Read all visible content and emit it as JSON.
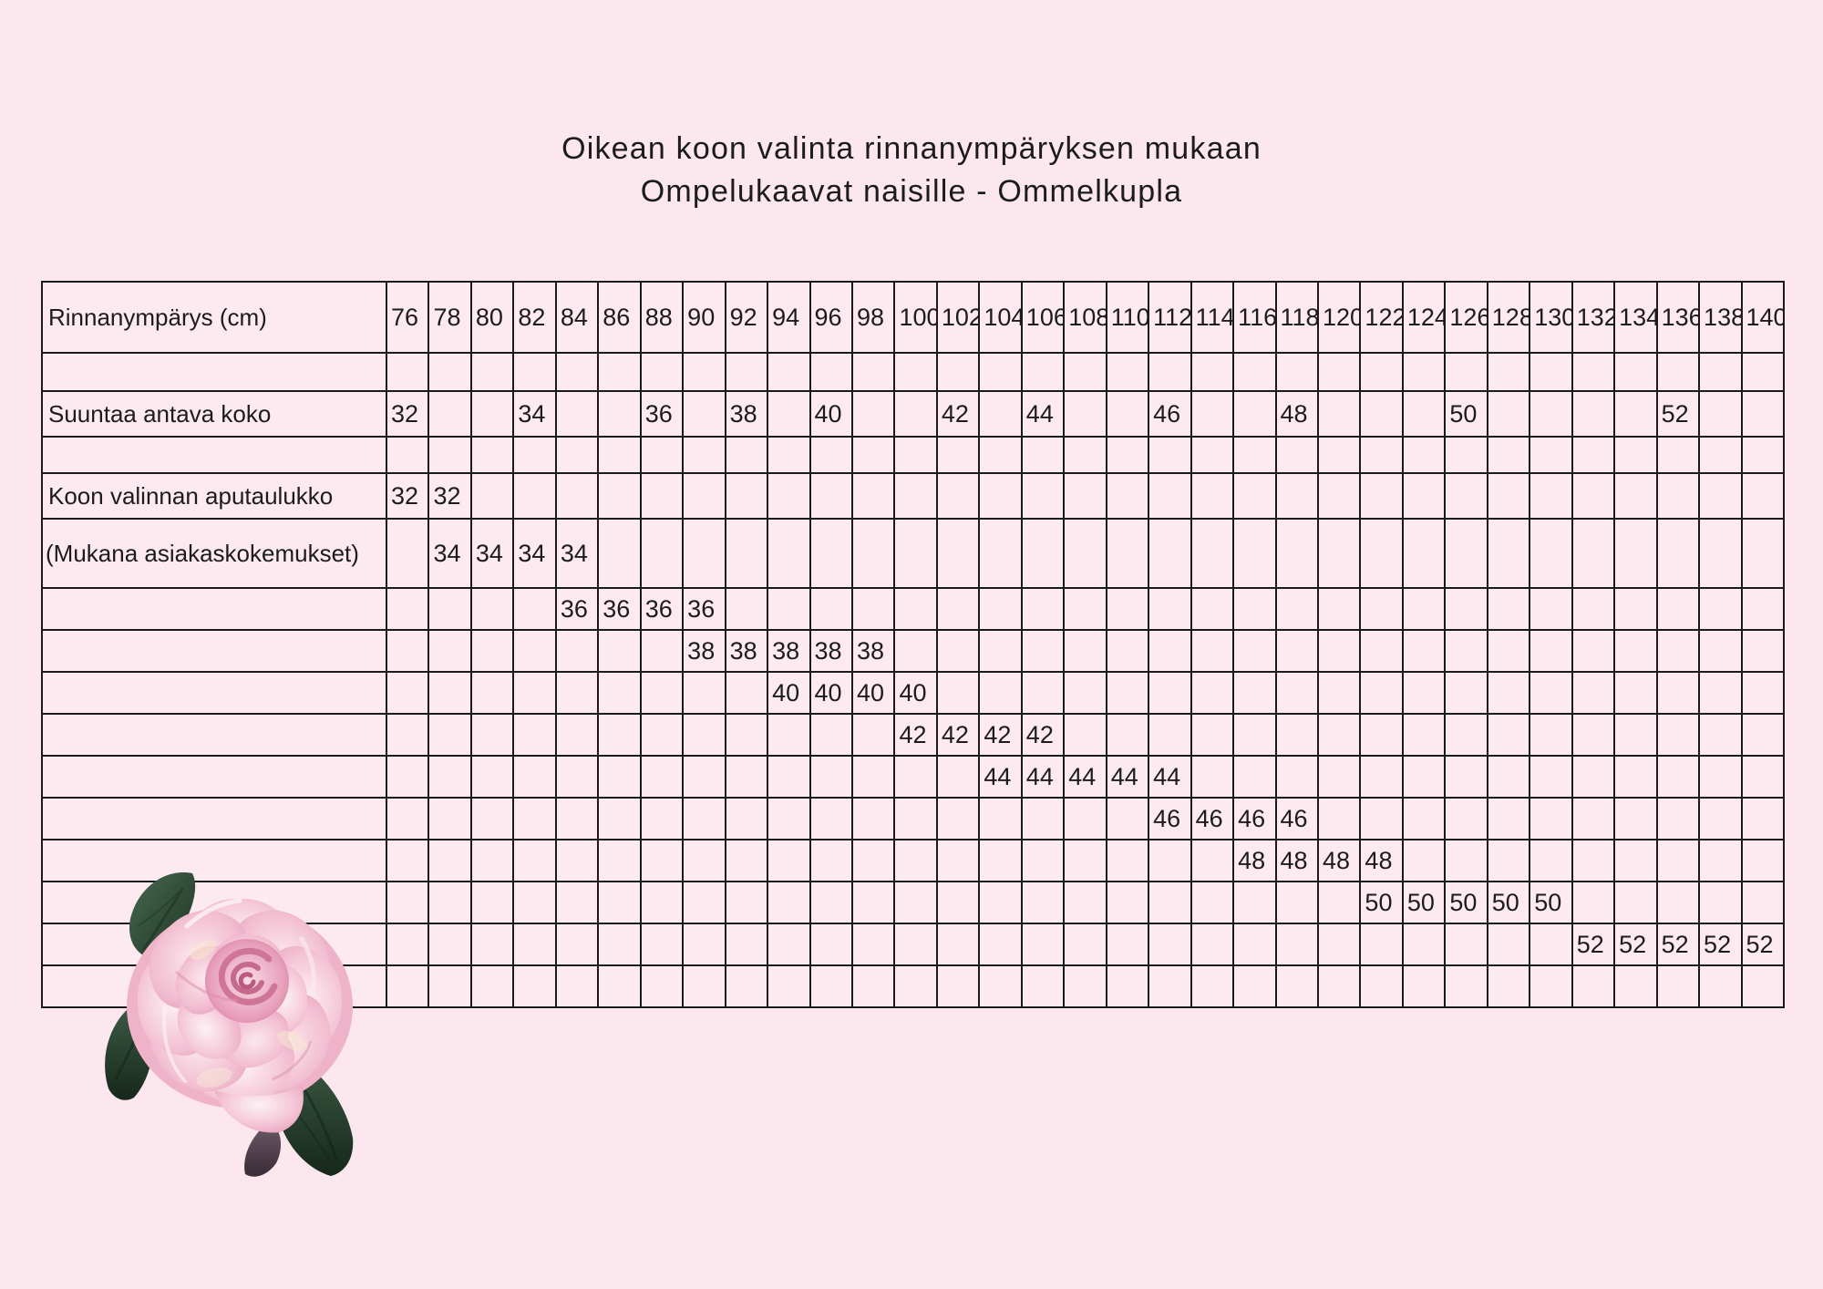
{
  "page": {
    "title": "Oikean koon valinta rinnanympäryksen mukaan",
    "subtitle": "Ompelukaavat naisille - Ommelkupla"
  },
  "chart_data": {
    "type": "table",
    "title": "Oikean koon valinta rinnanympäryksen mukaan",
    "subtitle": "Ompelukaavat naisille - Ommelkupla",
    "columns": [
      "76",
      "78",
      "80",
      "82",
      "84",
      "86",
      "88",
      "90",
      "92",
      "94",
      "96",
      "98",
      "100",
      "102",
      "104",
      "106",
      "108",
      "110",
      "112",
      "114",
      "116",
      "118",
      "120",
      "122",
      "124",
      "126",
      "128",
      "130",
      "132",
      "134",
      "136",
      "138",
      "140"
    ],
    "rows": [
      {
        "name": "bust-circumference-header",
        "label": "Rinnanympärys (cm)",
        "use_columns": true,
        "cells": {}
      },
      {
        "name": "spacer-row-1",
        "label": "",
        "cells": {}
      },
      {
        "name": "suggested-size",
        "label": "Suuntaa antava koko",
        "cells": {
          "0": "32",
          "3": "34",
          "6": "36",
          "8": "38",
          "10": "40",
          "13": "42",
          "15": "44",
          "18": "46",
          "21": "48",
          "25": "50",
          "30": "52"
        }
      },
      {
        "name": "spacer-row-2",
        "label": "",
        "cells": {}
      },
      {
        "name": "size-selection-helper",
        "label": "Koon valinnan aputaulukko",
        "cells": {
          "0": "32",
          "1": "32"
        }
      },
      {
        "name": "customer-experiences-note",
        "label": "(Mukana asiakaskokemukset)",
        "cells": {
          "1": "34",
          "2": "34",
          "3": "34",
          "4": "34"
        }
      },
      {
        "name": "size-36-range",
        "label": "",
        "cells": {
          "4": "36",
          "5": "36",
          "6": "36",
          "7": "36"
        }
      },
      {
        "name": "size-38-range",
        "label": "",
        "cells": {
          "7": "38",
          "8": "38",
          "9": "38",
          "10": "38",
          "11": "38"
        }
      },
      {
        "name": "size-40-range",
        "label": "",
        "cells": {
          "9": "40",
          "10": "40",
          "11": "40",
          "12": "40"
        }
      },
      {
        "name": "size-42-range",
        "label": "",
        "cells": {
          "12": "42",
          "13": "42",
          "14": "42",
          "15": "42"
        }
      },
      {
        "name": "size-44-range",
        "label": "",
        "cells": {
          "14": "44",
          "15": "44",
          "16": "44",
          "17": "44",
          "18": "44"
        }
      },
      {
        "name": "size-46-range",
        "label": "",
        "cells": {
          "18": "46",
          "19": "46",
          "20": "46",
          "21": "46"
        }
      },
      {
        "name": "size-48-range",
        "label": "",
        "cells": {
          "20": "48",
          "21": "48",
          "22": "48",
          "23": "48"
        }
      },
      {
        "name": "size-50-range",
        "label": "",
        "cells": {
          "23": "50",
          "24": "50",
          "25": "50",
          "26": "50",
          "27": "50"
        }
      },
      {
        "name": "size-52-range",
        "label": "",
        "cells": {
          "28": "52",
          "29": "52",
          "30": "52",
          "31": "52",
          "32": "52"
        }
      },
      {
        "name": "spacer-row-3",
        "label": "",
        "cells": {}
      }
    ]
  },
  "decor": {
    "illustration": "pink-rose-with-green-leaves"
  },
  "colors": {
    "background": "#fce7ee",
    "cell-fill": "#fdeaf0",
    "grid-line": "#1b1b1b",
    "text": "#1c1c1c",
    "rose-pink": "#f2bed1",
    "rose-deep": "#df8fae",
    "leaf-green": "#2e4a36",
    "leaf-purple": "#5e4b59"
  }
}
